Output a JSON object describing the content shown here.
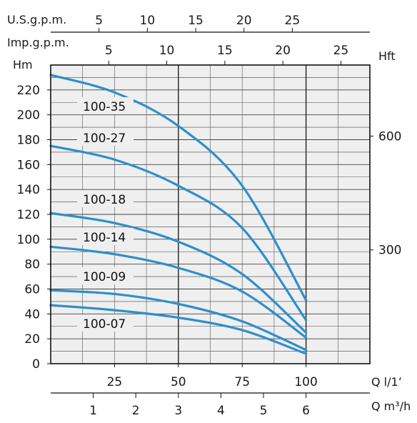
{
  "chart_data": {
    "type": "line",
    "title": "",
    "x_axis_bottom": {
      "label": "Q l/1’",
      "ticks": [
        "25",
        "50",
        "75",
        "100"
      ],
      "ticks_values": [
        25,
        50,
        75,
        100
      ],
      "range": [
        0,
        125
      ]
    },
    "x_axis_bottom2": {
      "label": "Q m³/h",
      "ticks": [
        "1",
        "2",
        "3",
        "4",
        "5",
        "6"
      ],
      "ticks_values": [
        1,
        2,
        3,
        4,
        5,
        6
      ]
    },
    "x_axis_top1": {
      "label": "U.S.g.p.m.",
      "ticks": [
        "5",
        "10",
        "15",
        "20",
        "25"
      ],
      "ticks_values": [
        5,
        10,
        15,
        20,
        25
      ]
    },
    "x_axis_top2": {
      "label": "Imp.g.p.m.",
      "ticks": [
        "5",
        "10",
        "15",
        "20",
        "25"
      ],
      "ticks_values": [
        5,
        10,
        15,
        20,
        25
      ]
    },
    "y_axis_left": {
      "label": "Hm",
      "ticks": [
        "0",
        "20",
        "40",
        "60",
        "80",
        "100",
        "120",
        "140",
        "160",
        "180",
        "200",
        "220"
      ],
      "ticks_values": [
        0,
        20,
        40,
        60,
        80,
        100,
        120,
        140,
        160,
        180,
        200,
        220
      ],
      "range": [
        0,
        240
      ]
    },
    "y_axis_right": {
      "label": "Hft",
      "ticks": [
        "300",
        "600"
      ],
      "ticks_values": [
        300,
        600
      ]
    },
    "grid": true,
    "series_color": "#2e8fcb",
    "series": [
      {
        "name": "100-35",
        "x": [
          0,
          25,
          50,
          75,
          100
        ],
        "y": [
          232,
          218,
          191,
          143,
          51
        ]
      },
      {
        "name": "100-27",
        "x": [
          0,
          25,
          50,
          75,
          100
        ],
        "y": [
          175,
          164,
          143,
          109,
          35
        ]
      },
      {
        "name": "100-18",
        "x": [
          0,
          25,
          50,
          75,
          100
        ],
        "y": [
          121,
          113,
          98,
          72,
          25
        ]
      },
      {
        "name": "100-14",
        "x": [
          0,
          25,
          50,
          75,
          100
        ],
        "y": [
          94,
          88,
          77,
          58,
          21
        ]
      },
      {
        "name": "100-09",
        "x": [
          0,
          25,
          50,
          75,
          100
        ],
        "y": [
          59,
          56,
          48,
          34,
          11
        ]
      },
      {
        "name": "100-07",
        "x": [
          0,
          25,
          50,
          75,
          100
        ],
        "y": [
          47,
          43,
          37,
          27,
          8
        ]
      }
    ]
  }
}
